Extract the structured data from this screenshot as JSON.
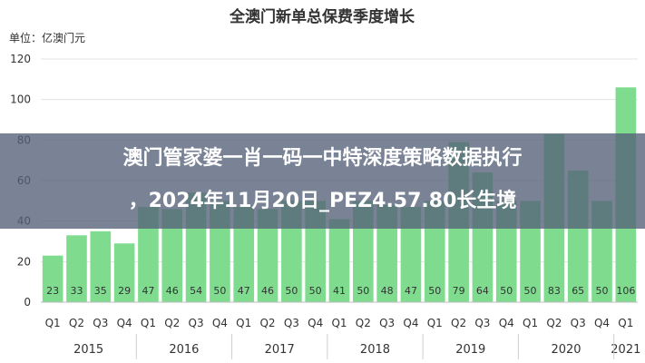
{
  "chart_data": {
    "type": "bar",
    "title": "全澳门新单总保费季度增长",
    "ylabel": "单位：亿澳门元",
    "ylim": [
      0,
      120
    ],
    "yticks": [
      0,
      20,
      40,
      60,
      80,
      100,
      120
    ],
    "grid": true,
    "categories": [
      "Q1",
      "Q2",
      "Q3",
      "Q4",
      "Q1",
      "Q2",
      "Q3",
      "Q4",
      "Q1",
      "Q2",
      "Q3",
      "Q4",
      "Q1",
      "Q2",
      "Q3",
      "Q4",
      "Q1",
      "Q2",
      "Q3",
      "Q4",
      "Q1",
      "Q2",
      "Q3",
      "Q4",
      "Q1"
    ],
    "years": [
      "2015",
      "2016",
      "2017",
      "2018",
      "2019",
      "2020",
      "2021"
    ],
    "values": [
      23,
      33,
      35,
      29,
      47,
      46,
      54,
      50,
      47,
      46,
      50,
      50,
      41,
      50,
      48,
      47,
      50,
      79,
      64,
      50,
      50,
      83,
      65,
      50,
      106
    ],
    "labels": [
      "23",
      "33",
      "35",
      "29",
      "47",
      "46",
      "54",
      "50",
      "47",
      "46",
      "50",
      "50",
      "41",
      "50",
      "48",
      "47",
      "50",
      "79",
      "64",
      "50",
      "50",
      "83",
      "65",
      "50",
      "106"
    ],
    "bar_color": "#7fdc8f"
  },
  "banner": {
    "line1": "澳门管家婆一肖一码一中特深度策略数据执行",
    "line2": "，2024年11月20日_PEZ4.57.80长生境"
  }
}
